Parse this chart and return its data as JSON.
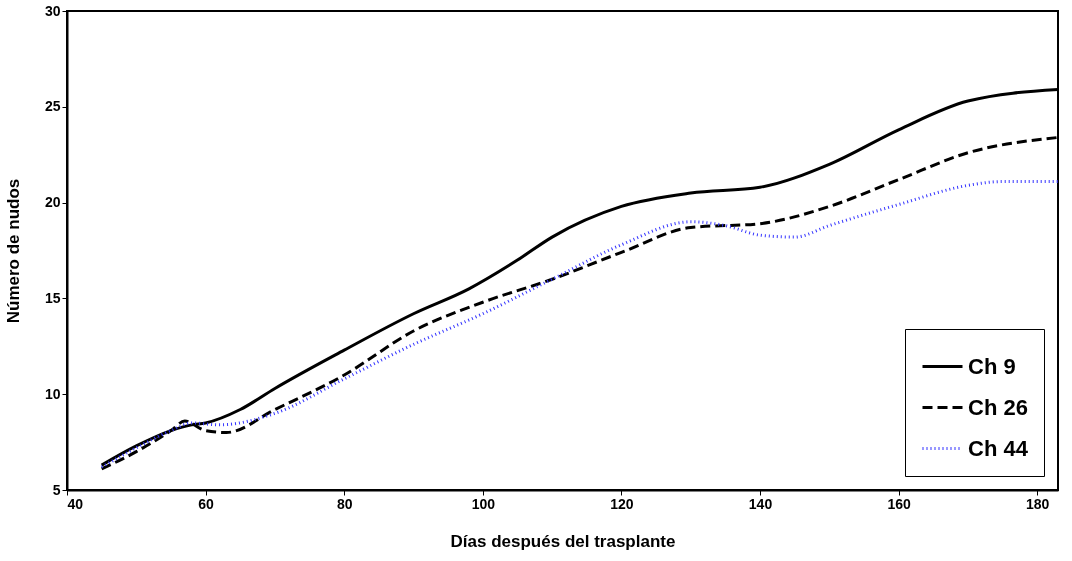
{
  "chart_data": {
    "type": "line",
    "xlabel": "Días después del trasplante",
    "ylabel": "Número de nudos",
    "xlim": [
      40,
      183
    ],
    "xticks": [
      40,
      60,
      80,
      100,
      120,
      140,
      160,
      180
    ],
    "ylim": [
      5,
      30
    ],
    "yticks": [
      5,
      10,
      15,
      20,
      25,
      30
    ],
    "grid": false,
    "legend": "bottom right",
    "marker": "none",
    "series": [
      {
        "name": "Ch 9",
        "color": "#000000",
        "line_style": "solid",
        "x": [
          45,
          50,
          55,
          58,
          60,
          65,
          70,
          80,
          90,
          98,
          105,
          110,
          120,
          130,
          140,
          150,
          160,
          170,
          183
        ],
        "values": [
          6.3,
          7.3,
          8.1,
          8.4,
          8.5,
          9.2,
          10.3,
          12.3,
          14.2,
          15.5,
          17.0,
          18.2,
          19.8,
          20.5,
          20.8,
          22.0,
          23.8,
          25.3,
          25.9
        ]
      },
      {
        "name": "Ch 26",
        "color": "#000000",
        "line_style": "dashed",
        "x": [
          45,
          50,
          55,
          57,
          60,
          63,
          70,
          80,
          90,
          100,
          110,
          120,
          130,
          140,
          150,
          160,
          170,
          183
        ],
        "values": [
          6.1,
          7.0,
          8.1,
          8.6,
          8.1,
          8.0,
          9.2,
          11.0,
          13.3,
          14.8,
          16.0,
          17.4,
          18.7,
          18.9,
          19.8,
          21.2,
          22.6,
          23.4
        ]
      },
      {
        "name": "Ch 44",
        "color": "#3333ff",
        "line_style": "dotted",
        "x": [
          45,
          50,
          55,
          58,
          62,
          70,
          80,
          90,
          100,
          110,
          120,
          130,
          135,
          140,
          145,
          150,
          160,
          170,
          175,
          183
        ],
        "values": [
          6.2,
          7.2,
          8.1,
          8.5,
          8.4,
          9.0,
          10.8,
          12.6,
          14.2,
          16.0,
          17.8,
          19.0,
          18.8,
          18.3,
          18.2,
          18.8,
          19.9,
          20.9,
          21.1,
          21.1
        ]
      }
    ]
  }
}
